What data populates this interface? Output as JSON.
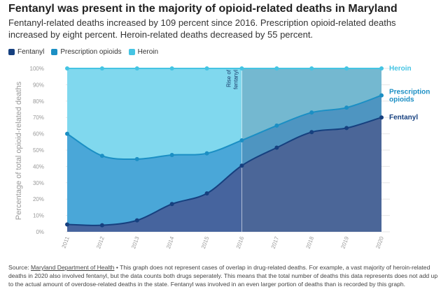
{
  "title": "Fentanyl was present in the majority of opioid-related deaths in Maryland",
  "subtitle": "Fentanyl-related deaths increased by 109 percent since 2016. Prescription opioid-related deaths increased by eight percent. Heroin-related deaths decreased by 55 percent.",
  "source": {
    "prefix": "Source: ",
    "link_text": "Maryland Department of Health",
    "note": " • This graph does not represent cases of overlap in drug-related deaths. For example, a vast majority of heroin-related deaths in 2020 also involved fentanyl, but the data counts both drugs seperately. This means that the total number of deaths this data represents does not add up to the actual amount of overdose-related deaths in the state. Fentanyl was involved in an even larger portion of deaths than is recorded by this graph."
  },
  "colors": {
    "fentanyl": "#16407f",
    "prescription": "#1b8fc4",
    "heroin": "#45c4e3",
    "fentanyl_fill": "#46649e",
    "prescription_fill": "#4aa7d8",
    "heroin_fill": "#80d8ee",
    "highlight": "#5a6e8a"
  },
  "chart_data": {
    "type": "area",
    "title": "Fentanyl was present in the majority of opioid-related deaths in Maryland",
    "xlabel": "",
    "ylabel": "Percentage of total opioid-related deaths",
    "x": [
      "2011",
      "2012",
      "2013",
      "2014",
      "2015",
      "2016",
      "2017",
      "2018",
      "2019",
      "2020"
    ],
    "ylim": [
      0,
      100
    ],
    "yticks": [
      "0%",
      "10%",
      "20%",
      "30%",
      "40%",
      "50%",
      "60%",
      "70%",
      "80%",
      "90%",
      "100%"
    ],
    "stacked": false,
    "legend_position": "top-left",
    "annotation": {
      "text": "Rise of fentanyl",
      "from": "2016",
      "to": "2020"
    },
    "series": [
      {
        "name": "Heroin",
        "label": "Heroin",
        "key": "heroin",
        "values": [
          100,
          100,
          100,
          100,
          100,
          100,
          100,
          100,
          100,
          100
        ]
      },
      {
        "name": "Prescription opioids",
        "label": "Prescription opioids",
        "key": "prescription",
        "values": [
          60,
          46.5,
          44.5,
          47,
          48,
          56,
          65,
          73,
          76,
          83.5
        ]
      },
      {
        "name": "Fentanyl",
        "label": "Fentanyl",
        "key": "fentanyl",
        "values": [
          4.5,
          4,
          7,
          17,
          23.5,
          40.5,
          51.5,
          61,
          63.5,
          70
        ]
      }
    ]
  }
}
